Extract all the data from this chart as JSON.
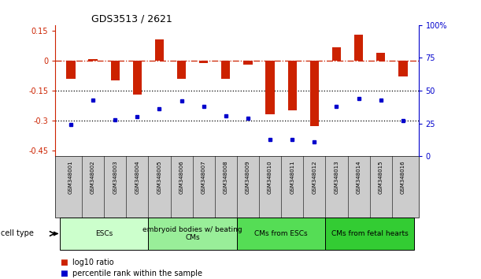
{
  "title": "GDS3513 / 2621",
  "samples": [
    "GSM348001",
    "GSM348002",
    "GSM348003",
    "GSM348004",
    "GSM348005",
    "GSM348006",
    "GSM348007",
    "GSM348008",
    "GSM348009",
    "GSM348010",
    "GSM348011",
    "GSM348012",
    "GSM348013",
    "GSM348014",
    "GSM348015",
    "GSM348016"
  ],
  "log10_ratio": [
    -0.09,
    0.01,
    -0.1,
    -0.17,
    0.11,
    -0.09,
    -0.01,
    -0.09,
    -0.02,
    -0.27,
    -0.25,
    -0.33,
    0.07,
    0.13,
    0.04,
    -0.08
  ],
  "percentile_rank": [
    24,
    43,
    28,
    30,
    36,
    42,
    38,
    31,
    29,
    13,
    13,
    11,
    38,
    44,
    43,
    27
  ],
  "cell_type_groups": [
    {
      "label": "ESCs",
      "start": 0,
      "end": 3,
      "color": "#ccffcc"
    },
    {
      "label": "embryoid bodies w/ beating\nCMs",
      "start": 4,
      "end": 7,
      "color": "#99ee99"
    },
    {
      "label": "CMs from ESCs",
      "start": 8,
      "end": 11,
      "color": "#55dd55"
    },
    {
      "label": "CMs from fetal hearts",
      "start": 12,
      "end": 15,
      "color": "#33cc33"
    }
  ],
  "ylim_left": [
    -0.48,
    0.18
  ],
  "ylim_right": [
    0,
    100
  ],
  "yticks_left": [
    0.15,
    0,
    -0.15,
    -0.3,
    -0.45
  ],
  "yticks_right": [
    100,
    75,
    50,
    25,
    0
  ],
  "bar_color": "#cc2200",
  "dot_color": "#0000cc",
  "dotted_lines": [
    -0.15,
    -0.3
  ],
  "legend_red": "log10 ratio",
  "legend_blue": "percentile rank within the sample",
  "cell_type_label": "cell type"
}
